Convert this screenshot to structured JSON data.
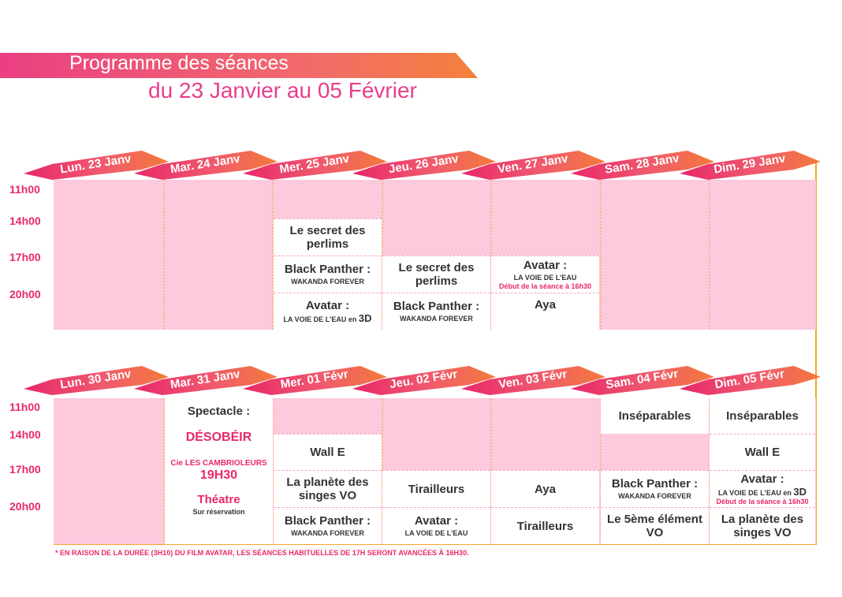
{
  "title": {
    "line1": "Programme des séances",
    "line2": "du 23 Janvier au 05 Février"
  },
  "times": [
    "11h00",
    "14h00",
    "17h00",
    "20h00"
  ],
  "week1": {
    "days": [
      "Lun. 23 Janv",
      "Mar. 24 Janv",
      "Mer. 25 Janv",
      "Jeu. 26 Janv",
      "Ven. 27 Janv",
      "Sam. 28 Janv",
      "Dim. 29 Janv"
    ],
    "sessions": {
      "mer_14": "Le secret des perlims",
      "mer_17_title": "Black Panther :",
      "mer_17_sub": "WAKANDA FOREVER",
      "mer_20_title": "Avatar :",
      "mer_20_sub": "LA VOIE DE L'EAU en",
      "mer_20_3d": "3D",
      "jeu_17": "Le secret des perlims",
      "jeu_20_title": "Black Panther :",
      "jeu_20_sub": "WAKANDA FOREVER",
      "ven_17_title": "Avatar :",
      "ven_17_sub": "LA VOIE DE L'EAU",
      "ven_17_note": "Début de la séance à 16h30",
      "ven_20": "Aya"
    }
  },
  "week2": {
    "days": [
      "Lun. 30 Janv",
      "Mar. 31 Janv",
      "Mer. 01 Févr",
      "Jeu. 02 Févr",
      "Ven. 03 Févr",
      "Sam. 04 Févr",
      "Dim. 05 Févr"
    ],
    "spectacle": {
      "label": "Spectacle :",
      "name": "DÉSOBÉIR",
      "company": "Cie LES CAMBRIOLEURS",
      "time": "19H30",
      "genre": "Théatre",
      "booking": "Sur réservation"
    },
    "sessions": {
      "mer_14": "Wall E",
      "mer_17": "La planète des singes VO",
      "mer_20_title": "Black Panther :",
      "mer_20_sub": "WAKANDA FOREVER",
      "jeu_17": "Tirailleurs",
      "jeu_20_title": "Avatar :",
      "jeu_20_sub": "LA VOIE DE L'EAU",
      "ven_17": "Aya",
      "ven_20": "Tirailleurs",
      "sam_11": "Inséparables",
      "sam_17_title": "Black Panther :",
      "sam_17_sub": "WAKANDA FOREVER",
      "sam_20": "Le 5ème élément VO",
      "dim_11": "Inséparables",
      "dim_14": "Wall E",
      "dim_17_title": "Avatar :",
      "dim_17_sub": "LA VOIE DE L'EAU en",
      "dim_17_3d": "3D",
      "dim_17_note": "Début de la séance à 16h30",
      "dim_20": "La planète des singes VO"
    }
  },
  "footnote": "* EN RAISON DE LA DURÉE (3H10) DU FILM AVATAR, LES SÉANCES HABITUELLES DE 17H SERONT AVANCÉES À 16H30.",
  "colors": {
    "pink_fill": "#fcc9dd",
    "orange": "#f47b3a",
    "magenta": "#e8286a",
    "border": "#f5a623"
  }
}
